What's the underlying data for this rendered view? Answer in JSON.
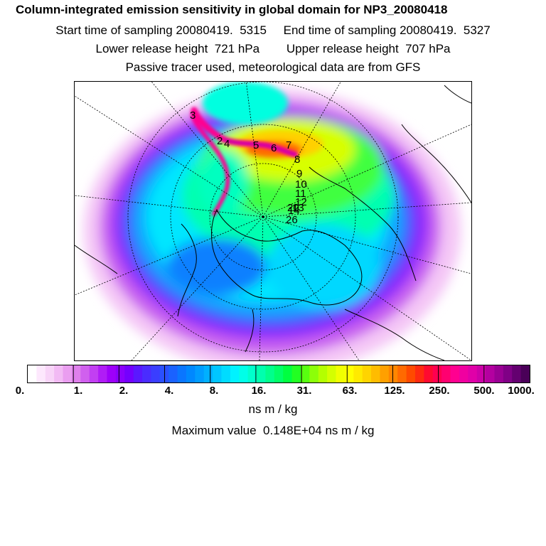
{
  "header": {
    "title": "Column-integrated emission sensitivity in global domain for NP3_20080418",
    "sampling_line": "Start time of sampling 20080419.  5315     End time of sampling 20080419.  5327",
    "release_line": "Lower release height  721 hPa        Upper release height  707 hPa",
    "tracer_line": "Passive tracer used, meteorological data are from GFS"
  },
  "colorbar": {
    "ticks": [
      "0.",
      "1.",
      "2.",
      "4.",
      "8.",
      "16.",
      "31.",
      "63.",
      "125.",
      "250.",
      "500.",
      "1000."
    ],
    "colors": [
      "#ffffff",
      "#fde8fd",
      "#f8d4f8",
      "#f2baf4",
      "#ea9ef0",
      "#df80ec",
      "#d060ee",
      "#c23ff2",
      "#b01cf6",
      "#9e00fa",
      "#8a00fc",
      "#7400fe",
      "#5a18ff",
      "#4a2cff",
      "#3a3eff",
      "#2a50ff",
      "#1a62ff",
      "#0a76ff",
      "#0088ff",
      "#009cff",
      "#00b0ff",
      "#00c6ff",
      "#00dcff",
      "#00f2ff",
      "#00ffe8",
      "#00ffcc",
      "#00ffae",
      "#00ff8c",
      "#00ff68",
      "#00ff40",
      "#22ff22",
      "#58ff10",
      "#8cff08",
      "#b4ff00",
      "#d4ff00",
      "#f0ff00",
      "#ffff00",
      "#ffea00",
      "#ffd400",
      "#ffbc00",
      "#ffa000",
      "#ff8600",
      "#ff6a00",
      "#ff4a00",
      "#ff2a10",
      "#ff0a30",
      "#ff0050",
      "#ff0070",
      "#ff0090",
      "#f000a0",
      "#e000a8",
      "#cc00a8",
      "#b400a0",
      "#9a0094",
      "#800086",
      "#640070",
      "#4a0058"
    ],
    "units": "ns m / kg",
    "max_value": "Maximum value  0.148E+04 ns m / kg"
  },
  "map": {
    "track_labels": [
      "3",
      "2",
      "4",
      "5",
      "6",
      "7",
      "8",
      "9",
      "10",
      "11",
      "12",
      "13",
      "14",
      "20",
      "26"
    ]
  }
}
